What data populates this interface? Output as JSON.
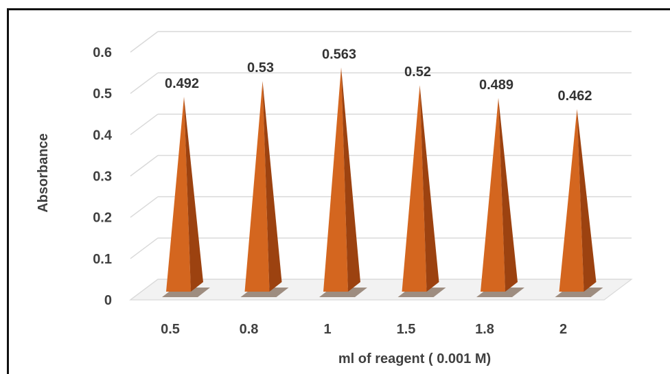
{
  "chart_data": {
    "type": "bar",
    "style": "3d-pyramid",
    "categories": [
      "0.5",
      "0.8",
      "1",
      "1.5",
      "1.8",
      "2"
    ],
    "values": [
      0.492,
      0.53,
      0.563,
      0.52,
      0.489,
      0.462
    ],
    "data_labels": [
      "0.492",
      "0.53",
      "0.563",
      "0.52",
      "0.489",
      "0.462"
    ],
    "xlabel": "ml of reagent ( 0.001 M)",
    "ylabel": "Absorbance",
    "ylim": [
      0,
      0.6
    ],
    "yticks": [
      "0",
      "0.1",
      "0.2",
      "0.3",
      "0.4",
      "0.5",
      "0.6"
    ],
    "grid": true,
    "legend": "none",
    "colors": {
      "face": "#d4661f",
      "side": "#9c4210",
      "shadow": "#5a3a22",
      "gridline": "#d9d9d9",
      "text": "#404040"
    }
  }
}
